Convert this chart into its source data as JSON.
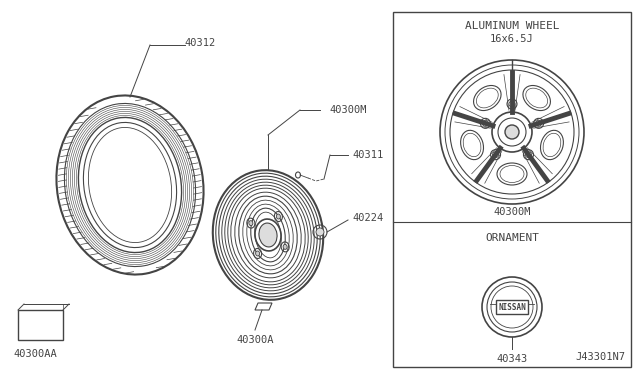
{
  "bg_color": "#ffffff",
  "line_color": "#444444",
  "title_text": "J43301N7",
  "box_title1": "ALUMINUM WHEEL",
  "box_subtitle1": "16x6.5J",
  "box_label1": "40300M",
  "box_title2": "ORNAMENT",
  "box_label2": "40343",
  "nissan_text": "NISSAN",
  "labels": {
    "tire": "40312",
    "wheel_assy": "40300M",
    "valve": "40311",
    "hub_nut": "40224",
    "wheel_balance": "40300A",
    "wheel_balance2": "40300AA"
  },
  "fig_width": 6.4,
  "fig_height": 3.72,
  "dpi": 100
}
